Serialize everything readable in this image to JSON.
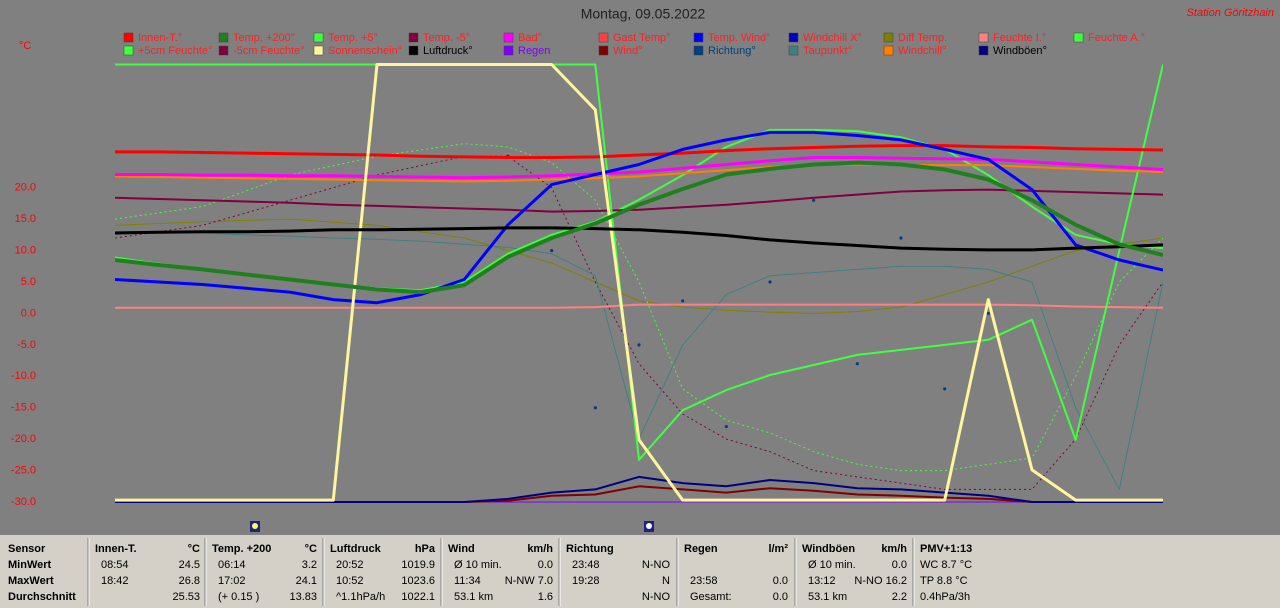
{
  "chart_data": {
    "type": "line",
    "title": "Montag, 09.05.2022",
    "station": "Station Göritzhain",
    "y_unit": "°C",
    "x": [
      0,
      1,
      2,
      3,
      4,
      5,
      6,
      7,
      8,
      9,
      10,
      11,
      12,
      13,
      14,
      15,
      16,
      17,
      18,
      19,
      20,
      21,
      22,
      23,
      24
    ],
    "xlim": [
      0,
      24
    ],
    "ylim": [
      -30,
      40
    ],
    "yticks": [
      {
        "value": 20,
        "label": "20.0"
      },
      {
        "value": 15,
        "label": "15.0"
      },
      {
        "value": 10,
        "label": "10.0"
      },
      {
        "value": 5,
        "label": "5.0"
      },
      {
        "value": 0,
        "label": "0.0"
      },
      {
        "value": -5,
        "label": "-5.0"
      },
      {
        "value": -10,
        "label": "-10.0"
      },
      {
        "value": -15,
        "label": "-15.0"
      },
      {
        "value": -20,
        "label": "-20.0"
      },
      {
        "value": -25,
        "label": "-25.0"
      },
      {
        "value": -30,
        "label": "-30.0"
      }
    ],
    "series": [
      {
        "name": "Innen-T.°",
        "color": "#ff0000",
        "text_color": "#ff2020",
        "line_width": 3,
        "values": [
          25.7,
          25.7,
          25.6,
          25.5,
          25.4,
          25.3,
          25.2,
          25.0,
          24.9,
          24.8,
          24.8,
          24.9,
          25.2,
          25.5,
          25.9,
          26.2,
          26.4,
          26.6,
          26.7,
          26.7,
          26.5,
          26.4,
          26.2,
          26.1,
          26.0
        ]
      },
      {
        "name": "Temp. +200°",
        "color": "#208020",
        "text_color": "#ff2020",
        "line_width": 4,
        "values": [
          8.5,
          7.7,
          7.0,
          6.2,
          5.4,
          4.6,
          3.8,
          3.4,
          4.5,
          9.0,
          12.0,
          14.3,
          17.3,
          19.8,
          22.1,
          23.0,
          23.7,
          24.0,
          23.7,
          22.9,
          21.3,
          18.0,
          14.1,
          11.0,
          9.3
        ]
      },
      {
        "name": "Temp. +5°",
        "color": "#40ff40",
        "text_color": "#ff2020",
        "line_width": 2,
        "values": [
          8.9,
          7.9,
          7.0,
          6.2,
          5.4,
          4.6,
          4.0,
          3.7,
          5.0,
          9.5,
          12.5,
          14.6,
          18.1,
          22.0,
          26.5,
          29.2,
          29.2,
          29.0,
          28.0,
          26.1,
          22.0,
          17.0,
          12.5,
          11.0,
          10.4
        ]
      },
      {
        "name": "Temp. -5°",
        "color": "#800040",
        "text_color": "#ff2020",
        "line_width": 2,
        "values": [
          18.4,
          18.2,
          18.0,
          17.8,
          17.6,
          17.3,
          17.1,
          16.9,
          16.7,
          16.5,
          16.2,
          16.3,
          16.5,
          16.9,
          17.3,
          17.8,
          18.4,
          18.9,
          19.4,
          19.6,
          19.7,
          19.5,
          19.3,
          19.1,
          18.9
        ]
      },
      {
        "name": "Bad°",
        "color": "#ff00ff",
        "text_color": "#ff2020",
        "line_width": 3,
        "values": [
          22.1,
          22.1,
          22.0,
          22.0,
          21.9,
          21.9,
          21.8,
          21.7,
          21.6,
          21.7,
          21.9,
          22.2,
          22.5,
          23.1,
          23.7,
          24.3,
          24.8,
          24.8,
          24.7,
          24.6,
          24.5,
          24.1,
          23.7,
          23.3,
          22.9
        ]
      },
      {
        "name": "Gast Temp°",
        "color": "#ff4040",
        "text_color": "#ff2020",
        "line_width": 2,
        "values": [
          null,
          null,
          null,
          null,
          null,
          null,
          null,
          null,
          null,
          null,
          null,
          null,
          null,
          null,
          null,
          null,
          null,
          null,
          null,
          null,
          null,
          null,
          null,
          null,
          null
        ]
      },
      {
        "name": "Temp. Wind°",
        "color": "#0000ff",
        "text_color": "#ff2020",
        "line_width": 3,
        "values": [
          5.4,
          5.0,
          4.6,
          4.0,
          3.4,
          2.2,
          1.7,
          3.0,
          5.4,
          14.1,
          20.5,
          22.1,
          23.7,
          26.1,
          27.6,
          28.8,
          28.8,
          28.3,
          27.6,
          26.1,
          24.5,
          19.7,
          10.9,
          8.5,
          6.9
        ]
      },
      {
        "name": "Windchill X°",
        "color": "#0000c0",
        "text_color": "#ff2020",
        "line_width": 2,
        "values": [
          null,
          null,
          null,
          null,
          null,
          null,
          null,
          null,
          null,
          null,
          null,
          null,
          null,
          null,
          null,
          null,
          null,
          null,
          null,
          null,
          null,
          null,
          null,
          null,
          null
        ]
      },
      {
        "name": "Diff Temp.",
        "color": "#808000",
        "text_color": "#ff2020",
        "line_width": 1,
        "values": [
          14,
          14.3,
          14.6,
          14.8,
          15,
          14.5,
          14,
          13,
          12,
          10,
          8,
          5,
          2,
          1,
          0.5,
          0.2,
          0,
          0.3,
          1,
          3,
          5,
          7.5,
          10,
          11,
          12
        ]
      },
      {
        "name": "Feuchte I.°",
        "color": "#ff8080",
        "text_color": "#ff2020",
        "line_width": 2,
        "values": [
          0.9,
          0.9,
          0.9,
          0.9,
          0.9,
          0.9,
          0.9,
          0.9,
          0.9,
          0.9,
          0.9,
          1.0,
          1.4,
          1.4,
          1.4,
          1.4,
          1.4,
          1.4,
          1.4,
          1.4,
          1.4,
          1.3,
          1.1,
          1.0,
          0.9
        ]
      },
      {
        "name": "Feuchte A.°",
        "color": "#40ff40",
        "text_color": "#ff2020",
        "line_width": 2,
        "values": [
          39.6,
          39.6,
          39.6,
          39.6,
          39.6,
          39.6,
          39.6,
          39.6,
          39.6,
          39.6,
          39.6,
          39.6,
          -23.3,
          -15.4,
          -12.2,
          -9.8,
          -8.2,
          -6.6,
          -5.8,
          -5.0,
          -4.2,
          -1.0,
          -20.1,
          10.0,
          39.6
        ]
      },
      {
        "name": "+5cm Feuchte°",
        "color": "#40ff40",
        "text_color": "#ff2020",
        "line_width": 1,
        "dash": true,
        "values": [
          15,
          16,
          17,
          19.5,
          22,
          23.5,
          25,
          26,
          27,
          26.5,
          24,
          18,
          5,
          -12,
          -17,
          -19,
          -22,
          -24,
          -25,
          -25,
          -24,
          -23,
          -10,
          5,
          12
        ]
      },
      {
        "name": "-5cm Feuchte°",
        "color": "#800040",
        "text_color": "#ff2020",
        "line_width": 1,
        "dash": true,
        "values": [
          12,
          13,
          14,
          16,
          18,
          20,
          22,
          23.5,
          25,
          25,
          20,
          5,
          -8,
          -16,
          -20,
          -22,
          -25,
          -26,
          -27,
          -28,
          -28,
          -28,
          -20,
          -5,
          5
        ]
      },
      {
        "name": "Sonnenschein°",
        "color": "#fff59c",
        "text_color": "#ff2020",
        "line_width": 3,
        "values": [
          -29.7,
          -29.7,
          -29.7,
          -29.7,
          -29.7,
          -29.7,
          39.6,
          39.6,
          39.6,
          39.6,
          39.6,
          32.4,
          -20.1,
          -29.7,
          -29.7,
          -29.7,
          -29.7,
          -29.7,
          -29.7,
          -29.7,
          2.2,
          -24.9,
          -29.7,
          -29.7,
          -29.7
        ]
      },
      {
        "name": "Luftdruck°",
        "color": "#000000",
        "text_color": "#000000",
        "line_width": 3,
        "values": [
          12.8,
          12.9,
          13.0,
          13.0,
          13.1,
          13.3,
          13.3,
          13.4,
          13.5,
          13.6,
          13.6,
          13.5,
          13.3,
          12.9,
          12.4,
          11.7,
          11.2,
          10.8,
          10.4,
          10.2,
          10.1,
          10.1,
          10.4,
          10.6,
          10.9
        ]
      },
      {
        "name": "Regen",
        "color": "#8000ff",
        "text_color": "#8000ff",
        "line_width": 1,
        "values": [
          -30,
          -30,
          -30,
          -30,
          -30,
          -30,
          -30,
          -30,
          -30,
          -30,
          -30,
          -30,
          -30,
          -30,
          -30,
          -30,
          -30,
          -30,
          -30,
          -30,
          -30,
          -30,
          -30,
          -30,
          -30
        ]
      },
      {
        "name": "Wind°",
        "color": "#800000",
        "text_color": "#ff2020",
        "line_width": 2,
        "values": [
          -30,
          -30,
          -30,
          -30,
          -30,
          -30,
          -30,
          -30,
          -30,
          -29.8,
          -29,
          -28.8,
          -27.5,
          -28,
          -28.5,
          -27.8,
          -28.2,
          -28.8,
          -29,
          -29.3,
          -29.5,
          -30,
          -30,
          -30,
          -30
        ]
      },
      {
        "name": "Richtung°",
        "color": "#004080",
        "text_color": "#004080",
        "marker": "dot",
        "values": [
          null,
          null,
          null,
          null,
          null,
          null,
          null,
          null,
          null,
          25,
          10,
          -15,
          -5,
          2,
          -18,
          5,
          18,
          -8,
          12,
          -12,
          0,
          null,
          null,
          null,
          null
        ]
      },
      {
        "name": "Taupunkt°",
        "color": "#408080",
        "text_color": "#ff2020",
        "line_width": 1,
        "values": [
          13,
          13,
          12.8,
          12.5,
          12.3,
          12,
          11.8,
          11.5,
          11,
          10.5,
          9.5,
          6,
          -20,
          -5,
          3,
          6,
          6.5,
          7,
          7.5,
          7.5,
          7,
          5,
          -15,
          -28,
          5
        ]
      },
      {
        "name": "Windchill°",
        "color": "#ff8000",
        "text_color": "#ff2020",
        "line_width": 2,
        "values": [
          21.8,
          21.7,
          21.6,
          21.5,
          21.4,
          21.3,
          21.2,
          21.1,
          21.0,
          21.1,
          21.3,
          21.5,
          21.8,
          22.3,
          22.8,
          23.3,
          23.7,
          23.7,
          23.6,
          23.6,
          23.6,
          23.3,
          23.0,
          22.7,
          22.5
        ]
      },
      {
        "name": "Windböen°",
        "color": "#000080",
        "text_color": "#000000",
        "line_width": 2,
        "values": [
          -30,
          -30,
          -30,
          -30,
          -30,
          -30,
          -30,
          -30,
          -30,
          -29.5,
          -28.5,
          -28,
          -26,
          -27,
          -27.5,
          -26.5,
          -27,
          -27.8,
          -28,
          -28.5,
          -29,
          -30,
          -30,
          -30,
          -30
        ]
      }
    ]
  },
  "table": {
    "columns": [
      {
        "header": "Sensor",
        "rows": [
          [
            "MinWert"
          ],
          [
            "MaxWert"
          ],
          [
            "Durchschnitt"
          ]
        ]
      },
      {
        "header": "Innen-T.",
        "unit": "°C",
        "rows": [
          [
            "08:54",
            "24.5"
          ],
          [
            "18:42",
            "26.8"
          ],
          [
            null,
            "25.53"
          ]
        ]
      },
      {
        "header": "Temp. +200",
        "unit": "°C",
        "rows": [
          [
            "06:14",
            "3.2"
          ],
          [
            "17:02",
            "24.1"
          ],
          [
            "(+ 0.15 )",
            "13.83"
          ]
        ]
      },
      {
        "header": "Luftdruck",
        "unit": "hPa",
        "rows": [
          [
            "20:52",
            "1019.9"
          ],
          [
            "10:52",
            "1023.6"
          ],
          [
            "^1.1hPa/h",
            "1022.1"
          ]
        ]
      },
      {
        "header": "Wind",
        "unit": "km/h",
        "rows": [
          [
            "Ø 10 min.",
            "0.0"
          ],
          [
            "11:34",
            "N-NW 7.0"
          ],
          [
            "53.1 km",
            "1.6"
          ]
        ]
      },
      {
        "header": "Richtung",
        "rows": [
          [
            "23:48",
            "N-NO"
          ],
          [
            "19:28",
            "N"
          ],
          [
            null,
            "N-NO"
          ]
        ]
      },
      {
        "header": "Regen",
        "unit": "l/m²",
        "rows": [
          [
            null,
            null
          ],
          [
            "23:58",
            "0.0"
          ],
          [
            "Gesamt:",
            "0.0"
          ]
        ]
      },
      {
        "header": "Windböen",
        "unit": "km/h",
        "rows": [
          [
            "Ø 10 min.",
            "0.0"
          ],
          [
            "13:12",
            "N-NO 16.2"
          ],
          [
            "53.1 km",
            "2.2"
          ]
        ]
      },
      {
        "header": "PMV+1:13",
        "rows": [
          [
            "WC 8.7 °C"
          ],
          [
            "TP 8.8 °C"
          ],
          [
            "0.4hPa/3h"
          ]
        ]
      }
    ]
  }
}
